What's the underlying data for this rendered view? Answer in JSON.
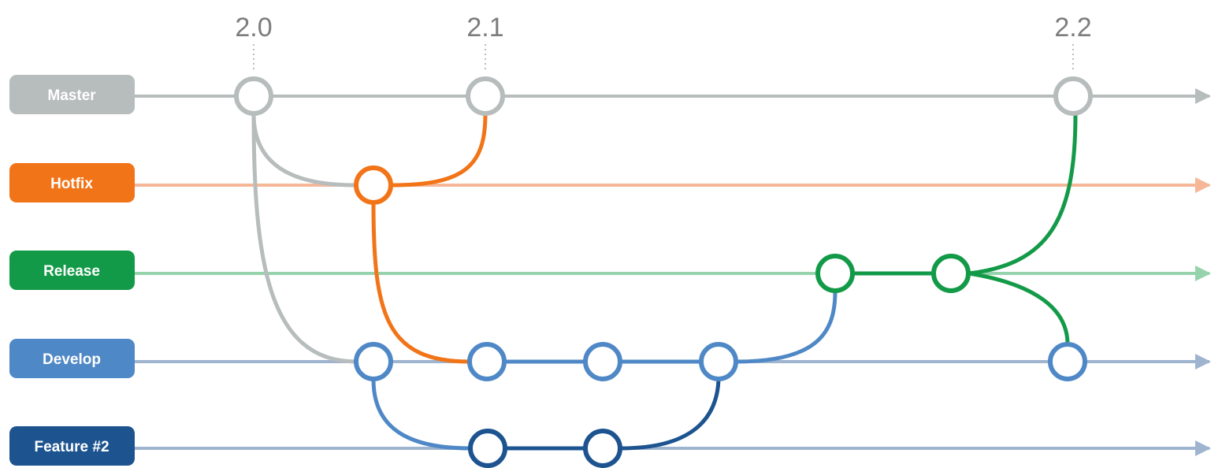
{
  "versions": [
    {
      "label": "2.0"
    },
    {
      "label": "2.1"
    },
    {
      "label": "2.2"
    }
  ],
  "branches": [
    {
      "id": "master",
      "label": "Master",
      "color": "#b7bcbc",
      "line_color": "#b7bcbc"
    },
    {
      "id": "hotfix",
      "label": "Hotfix",
      "color": "#f27418",
      "line_color": "#f6b798"
    },
    {
      "id": "release",
      "label": "Release",
      "color": "#139a48",
      "line_color": "#96d3ac"
    },
    {
      "id": "develop",
      "label": "Develop",
      "color": "#4f88c6",
      "line_color": "#9fb4cf"
    },
    {
      "id": "feature2",
      "label": "Feature #2",
      "color": "#1d5490",
      "line_color": "#9fb4cf"
    }
  ],
  "colors": {
    "master": "#b7bcbc",
    "hotfix": "#f27418",
    "release": "#139a48",
    "develop": "#4f88c6",
    "feature": "#1d5490",
    "version_text": "#7d7d7d"
  }
}
